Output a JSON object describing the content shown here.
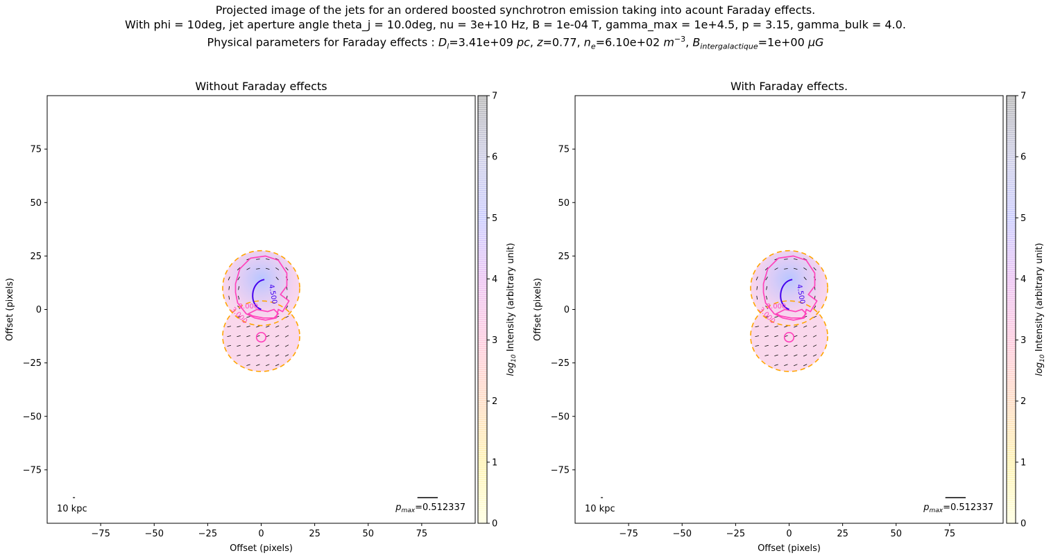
{
  "suptitle": {
    "line1": "Projected image of the jets for an ordered boosted synchrotron emission taking into acount Faraday effects.",
    "line2": "With phi = 10deg, jet aperture angle theta_j = 10.0deg, nu = 3e+10 Hz, B = 1e-04 T, gamma_max = 1e+4.5, p = 3.15, gamma_bulk = 4.0.",
    "line3_prefix": "Physical parameters for Faraday effects : ",
    "dl_sym": "D",
    "dl_sub": "l",
    "dl_val": "=3.41e+09 ",
    "dl_unit": "pc",
    "z_sym": "z",
    "z_val": "=0.77, ",
    "ne_sym": "n",
    "ne_sub": "e",
    "ne_val": "=6.10e+02 ",
    "ne_unit": "m",
    "ne_exp": "−3",
    "b_sym": "B",
    "b_sub": "intergalactique",
    "b_val": "=1e+00 ",
    "b_unit": "μG"
  },
  "colors": {
    "magenta_contour": "#ff44bb",
    "blue_contour": "#4400ee",
    "orange_contour": "#ffa500",
    "tick_black": "#000000"
  },
  "chart_data": [
    {
      "type": "heatmap",
      "title": "Without Faraday effects",
      "xlabel": "Offset (pixels)",
      "ylabel": "Offset (pixels)",
      "xlim": [
        -100,
        100
      ],
      "ylim": [
        -100,
        100
      ],
      "xticks": [
        -75,
        -50,
        -25,
        0,
        25,
        50,
        75
      ],
      "yticks": [
        -75,
        -50,
        -25,
        0,
        25,
        50,
        75
      ],
      "colorbar": {
        "label_sub": "10",
        "label": "log",
        "label_rest": " Intensity (arbitrary unit)",
        "range": [
          0,
          7
        ],
        "ticks": [
          0,
          1,
          2,
          3,
          4,
          5,
          6,
          7
        ]
      },
      "contour_labels": [
        "4.500",
        "3.000",
        "3.000"
      ],
      "scale_label": "10 kpc",
      "pmax_sym": "p",
      "pmax_sub": "max",
      "pmax_value": "=0.512337"
    },
    {
      "type": "heatmap",
      "title": "With Faraday effects.",
      "xlabel": "Offset (pixels)",
      "ylabel": "Offset (pixels)",
      "xlim": [
        -100,
        100
      ],
      "ylim": [
        -100,
        100
      ],
      "xticks": [
        -75,
        -50,
        -25,
        0,
        25,
        50,
        75
      ],
      "yticks": [
        -75,
        -50,
        -25,
        0,
        25,
        50,
        75
      ],
      "colorbar": {
        "label_sub": "10",
        "label": "log",
        "label_rest": " Intensity (arbitrary unit)",
        "range": [
          0,
          7
        ],
        "ticks": [
          0,
          1,
          2,
          3,
          4,
          5,
          6,
          7
        ]
      },
      "contour_labels": [
        "4.500",
        "3.000",
        "3.000"
      ],
      "scale_label": "10 kpc",
      "pmax_sym": "p",
      "pmax_sub": "max",
      "pmax_value": "=0.512337"
    }
  ]
}
